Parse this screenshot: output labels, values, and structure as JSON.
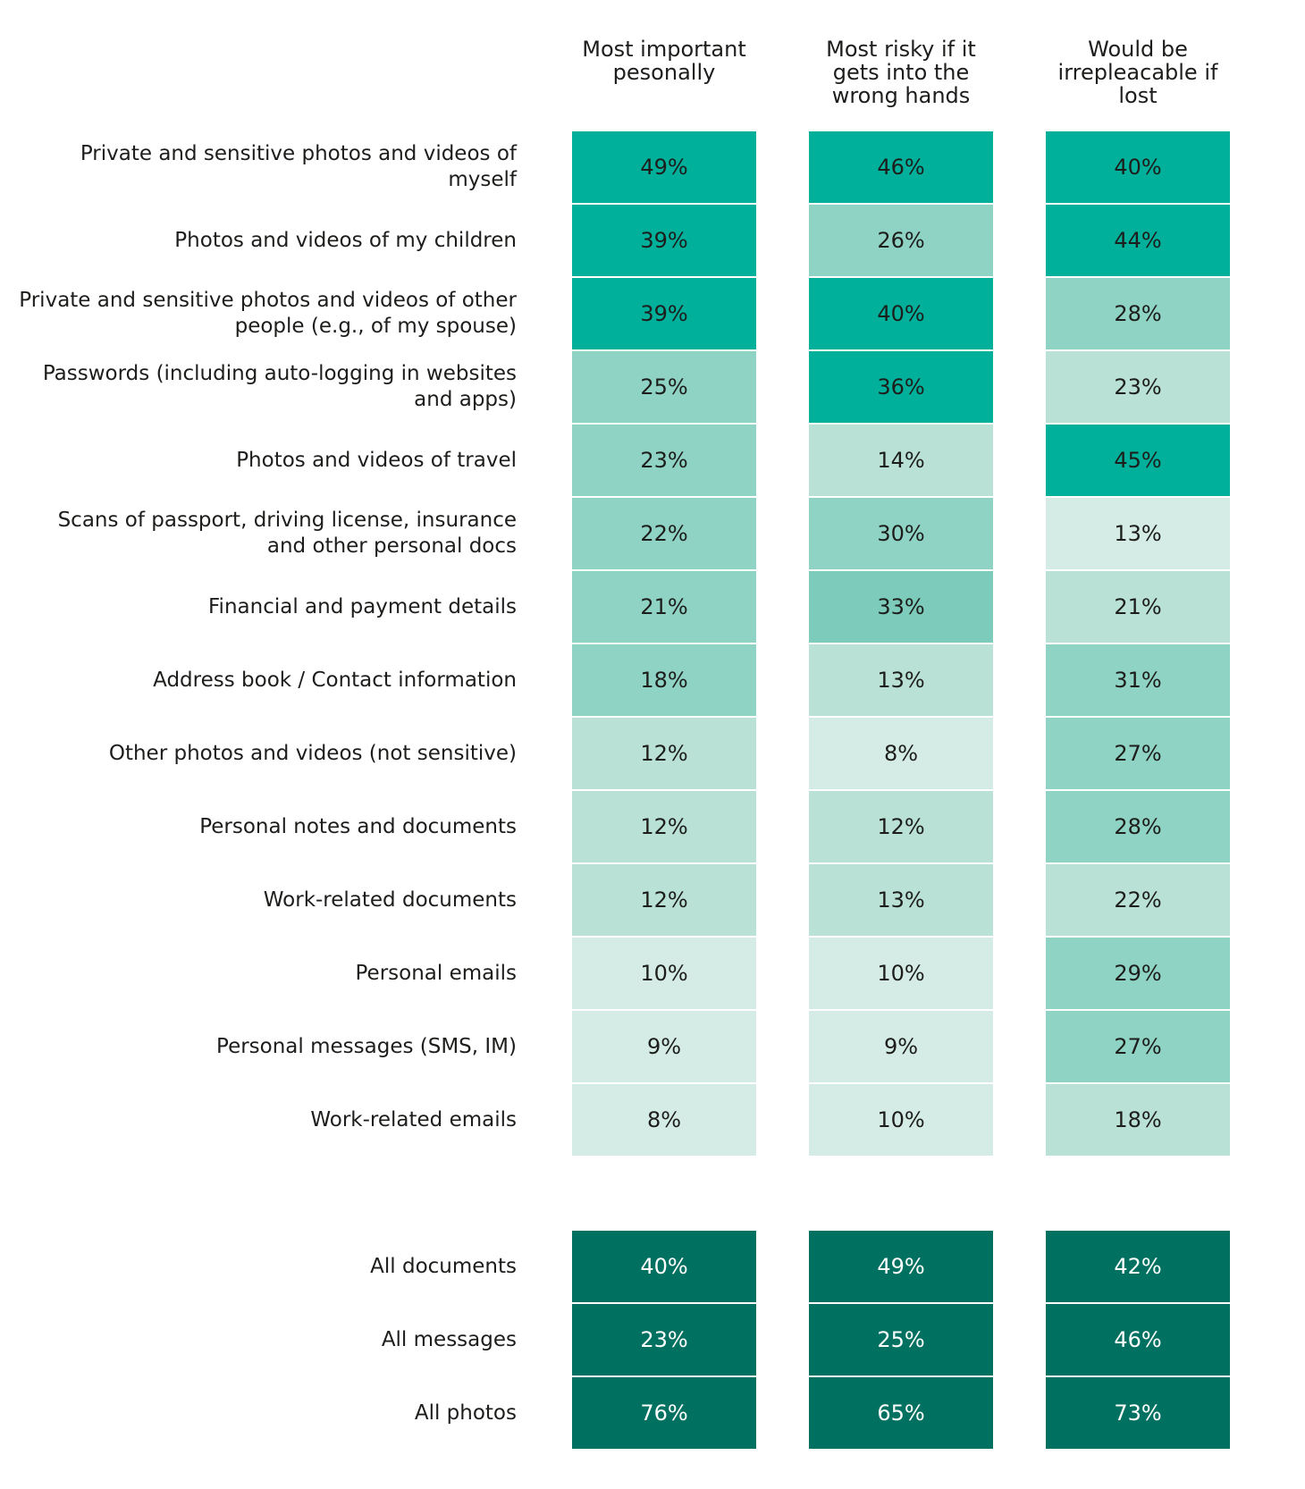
{
  "chart_data": {
    "type": "table",
    "columns": [
      "Most important pesonally",
      "Most risky if it gets into the wrong hands",
      "Would be irrepleacable if lost"
    ],
    "rows": [
      {
        "label": "Private and sensitive photos and videos of myself",
        "values": [
          "49%",
          "46%",
          "40%"
        ],
        "levels": [
          5,
          5,
          5
        ]
      },
      {
        "label": "Photos and videos of my children",
        "values": [
          "39%",
          "26%",
          "44%"
        ],
        "levels": [
          5,
          3,
          5
        ]
      },
      {
        "label": "Private and sensitive photos and videos of other people (e.g., of my spouse)",
        "values": [
          "39%",
          "40%",
          "28%"
        ],
        "levels": [
          5,
          5,
          3
        ]
      },
      {
        "label": "Passwords (including auto-logging in websites and apps)",
        "values": [
          "25%",
          "36%",
          "23%"
        ],
        "levels": [
          3,
          5,
          2
        ]
      },
      {
        "label": "Photos and videos of travel",
        "values": [
          "23%",
          "14%",
          "45%"
        ],
        "levels": [
          3,
          2,
          5
        ]
      },
      {
        "label": "Scans of passport, driving license, insurance and other personal docs",
        "values": [
          "22%",
          "30%",
          "13%"
        ],
        "levels": [
          3,
          3,
          1
        ]
      },
      {
        "label": "Financial and payment details",
        "values": [
          "21%",
          "33%",
          "21%"
        ],
        "levels": [
          3,
          4,
          2
        ]
      },
      {
        "label": "Address book / Contact information",
        "values": [
          "18%",
          "13%",
          "31%"
        ],
        "levels": [
          3,
          2,
          3
        ]
      },
      {
        "label": "Other photos and videos (not sensitive)",
        "values": [
          "12%",
          "8%",
          "27%"
        ],
        "levels": [
          2,
          1,
          3
        ]
      },
      {
        "label": "Personal notes and documents",
        "values": [
          "12%",
          "12%",
          "28%"
        ],
        "levels": [
          2,
          2,
          3
        ]
      },
      {
        "label": "Work-related documents",
        "values": [
          "12%",
          "13%",
          "22%"
        ],
        "levels": [
          2,
          2,
          2
        ]
      },
      {
        "label": "Personal emails",
        "values": [
          "10%",
          "10%",
          "29%"
        ],
        "levels": [
          1,
          1,
          3
        ]
      },
      {
        "label": "Personal messages (SMS, IM)",
        "values": [
          "9%",
          "9%",
          "27%"
        ],
        "levels": [
          1,
          1,
          3
        ]
      },
      {
        "label": "Work-related emails",
        "values": [
          "8%",
          "10%",
          "18%"
        ],
        "levels": [
          1,
          1,
          2
        ]
      }
    ],
    "summary_rows": [
      {
        "label": "All documents",
        "values": [
          "40%",
          "49%",
          "42%"
        ]
      },
      {
        "label": "All messages",
        "values": [
          "23%",
          "25%",
          "46%"
        ]
      },
      {
        "label": "All photos",
        "values": [
          "76%",
          "65%",
          "73%"
        ]
      }
    ],
    "colors": {
      "level_1": "#d4ece5",
      "level_2": "#b9e1d6",
      "level_3": "#8fd3c4",
      "level_4": "#7ccbbb",
      "level_5": "#00b09b",
      "summary": "#007060",
      "summary_text": "#ffffff",
      "text": "#1d1d1b"
    }
  }
}
